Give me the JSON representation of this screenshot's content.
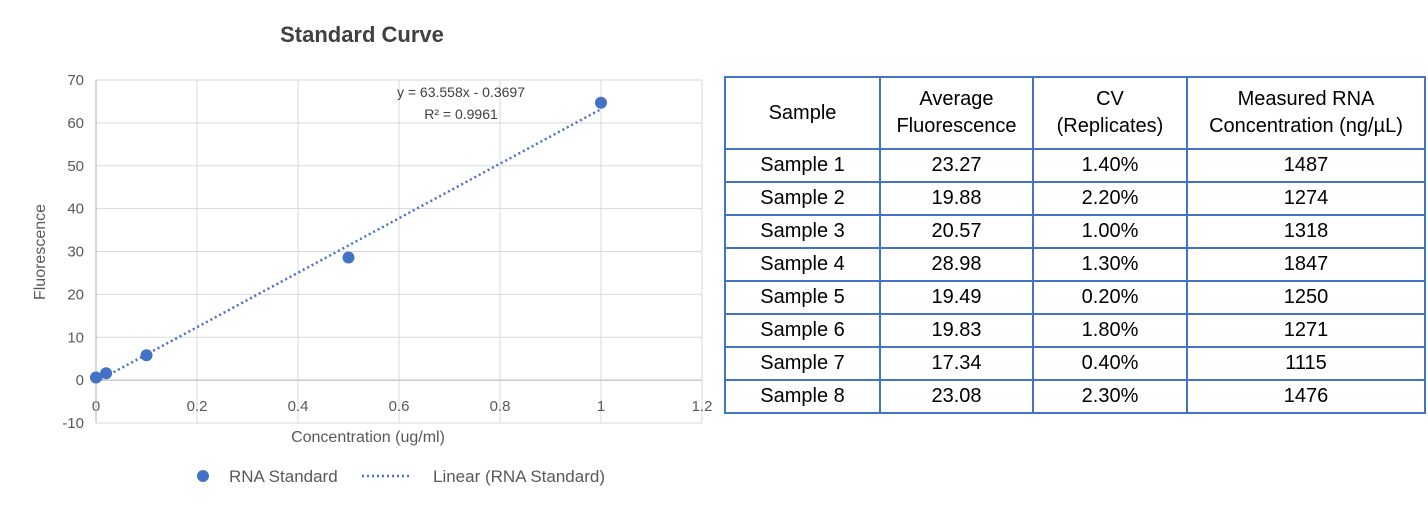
{
  "chart_data": {
    "type": "scatter",
    "title": "Standard Curve",
    "xlabel": "Concentration (ug/ml)",
    "ylabel": "Fluorescence",
    "xlim": [
      0,
      1.2
    ],
    "ylim": [
      -10,
      70
    ],
    "x_ticks": [
      "0",
      "0.2",
      "0.4",
      "0.6",
      "0.8",
      "1",
      "1.2"
    ],
    "y_ticks": [
      "-10",
      "0",
      "10",
      "20",
      "30",
      "40",
      "50",
      "60",
      "70"
    ],
    "grid": true,
    "legend_position": "bottom",
    "series": [
      {
        "name": "RNA Standard",
        "color": "#4472c4",
        "x": [
          0,
          0.02,
          0.1,
          0.5,
          1
        ],
        "y": [
          0.6,
          1.6,
          5.8,
          28.6,
          64.7
        ]
      }
    ],
    "trendline": {
      "name": "Linear (RNA Standard)",
      "type": "linear",
      "slope": 63.558,
      "intercept": -0.3697,
      "x_range": [
        0,
        1
      ],
      "color": "#4472c4",
      "equation": "y = 63.558x - 0.3697",
      "r_squared": "R² = 0.9961"
    }
  },
  "table": {
    "headers": [
      [
        "Sample"
      ],
      [
        "Average",
        "Fluorescence"
      ],
      [
        "CV",
        "(Replicates)"
      ],
      [
        "Measured RNA",
        "Concentration (ng/µL)"
      ]
    ],
    "rows": [
      [
        "Sample 1",
        "23.27",
        "1.40%",
        "1487"
      ],
      [
        "Sample 2",
        "19.88",
        "2.20%",
        "1274"
      ],
      [
        "Sample 3",
        "20.57",
        "1.00%",
        "1318"
      ],
      [
        "Sample 4",
        "28.98",
        "1.30%",
        "1847"
      ],
      [
        "Sample 5",
        "19.49",
        "0.20%",
        "1250"
      ],
      [
        "Sample 6",
        "19.83",
        "1.80%",
        "1271"
      ],
      [
        "Sample 7",
        "17.34",
        "0.40%",
        "1115"
      ],
      [
        "Sample 8",
        "23.08",
        "2.30%",
        "1476"
      ]
    ],
    "border_color": "#4472c4"
  }
}
